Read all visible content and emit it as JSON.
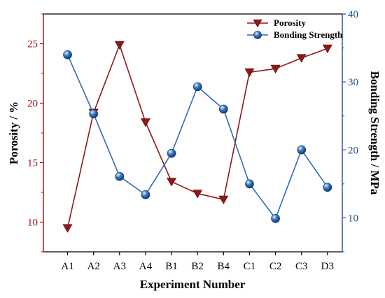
{
  "chart_data": {
    "type": "line",
    "categories": [
      "A1",
      "A2",
      "A3",
      "A4",
      "B1",
      "B2",
      "B4",
      "C1",
      "C2",
      "C3",
      "D3"
    ],
    "xlabel": "Experiment Number",
    "ylabel_left": "Porosity / %",
    "ylabel_right": "Bonding Strength / MPa",
    "ylim_left": [
      7.5,
      27.5
    ],
    "ylim_right": [
      5,
      40
    ],
    "yticks_left": [
      10,
      15,
      20,
      25
    ],
    "yticks_right": [
      10,
      20,
      30,
      40
    ],
    "legend_position": "top-right",
    "series": [
      {
        "name": "Porosity",
        "axis": "left",
        "marker": "triangle-down",
        "color": "#8b1a1a",
        "values": [
          9.5,
          19.2,
          24.9,
          18.4,
          13.4,
          12.4,
          11.9,
          22.6,
          22.9,
          23.8,
          24.6
        ]
      },
      {
        "name": "Bonding Strength",
        "axis": "right",
        "marker": "circle",
        "color": "#2e6db4",
        "values": [
          34.0,
          25.3,
          16.1,
          13.4,
          19.5,
          29.3,
          26.0,
          15.0,
          9.9,
          20.0,
          14.5
        ]
      }
    ],
    "colors": {
      "left_axis": "#a01010",
      "right_axis": "#1f4e8c",
      "frame": "#000000"
    }
  }
}
